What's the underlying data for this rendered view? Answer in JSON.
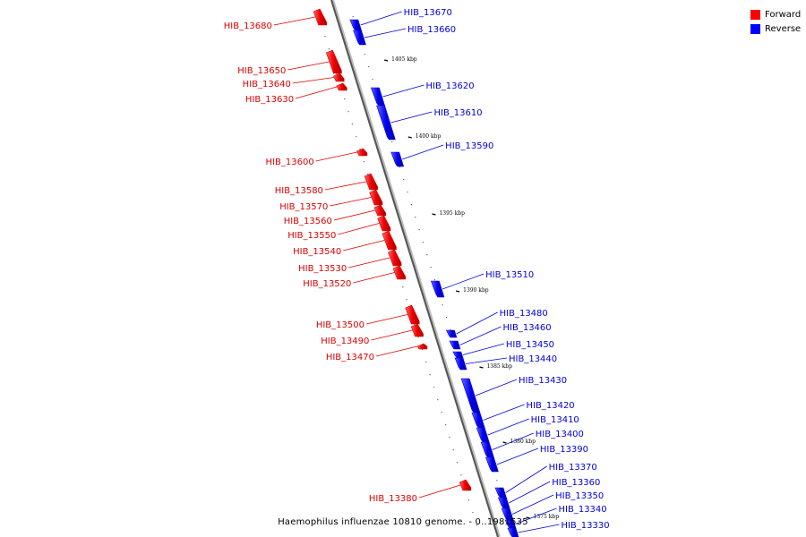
{
  "legend": {
    "forward_label": "Forward",
    "reverse_label": "Reverse",
    "forward_color": "#ff0000",
    "reverse_color": "#0000ff"
  },
  "caption": "Haemophilus influenzae 10810 genome. - 0..1981535",
  "scale_labels": [
    "1405 kbp",
    "1400 kbp",
    "1395 kbp",
    "1390 kbp",
    "1385 kbp",
    "1380 kbp",
    "1375 kbp"
  ],
  "genes_forward": [
    "HIB_13680",
    "HIB_13650",
    "HIB_13640",
    "HIB_13630",
    "HIB_13600",
    "HIB_13580",
    "HIB_13570",
    "HIB_13560",
    "HIB_13550",
    "HIB_13540",
    "HIB_13530",
    "HIB_13520",
    "HIB_13500",
    "HIB_13490",
    "HIB_13470",
    "HIB_13380"
  ],
  "genes_reverse": [
    "HIB_13670",
    "HIB_13660",
    "HIB_13620",
    "HIB_13610",
    "HIB_13590",
    "HIB_13510",
    "HIB_13480",
    "HIB_13460",
    "HIB_13450",
    "HIB_13440",
    "HIB_13430",
    "HIB_13420",
    "HIB_13410",
    "HIB_13400",
    "HIB_13390",
    "HIB_13370",
    "HIB_13360",
    "HIB_13350",
    "HIB_13340",
    "HIB_13330"
  ]
}
